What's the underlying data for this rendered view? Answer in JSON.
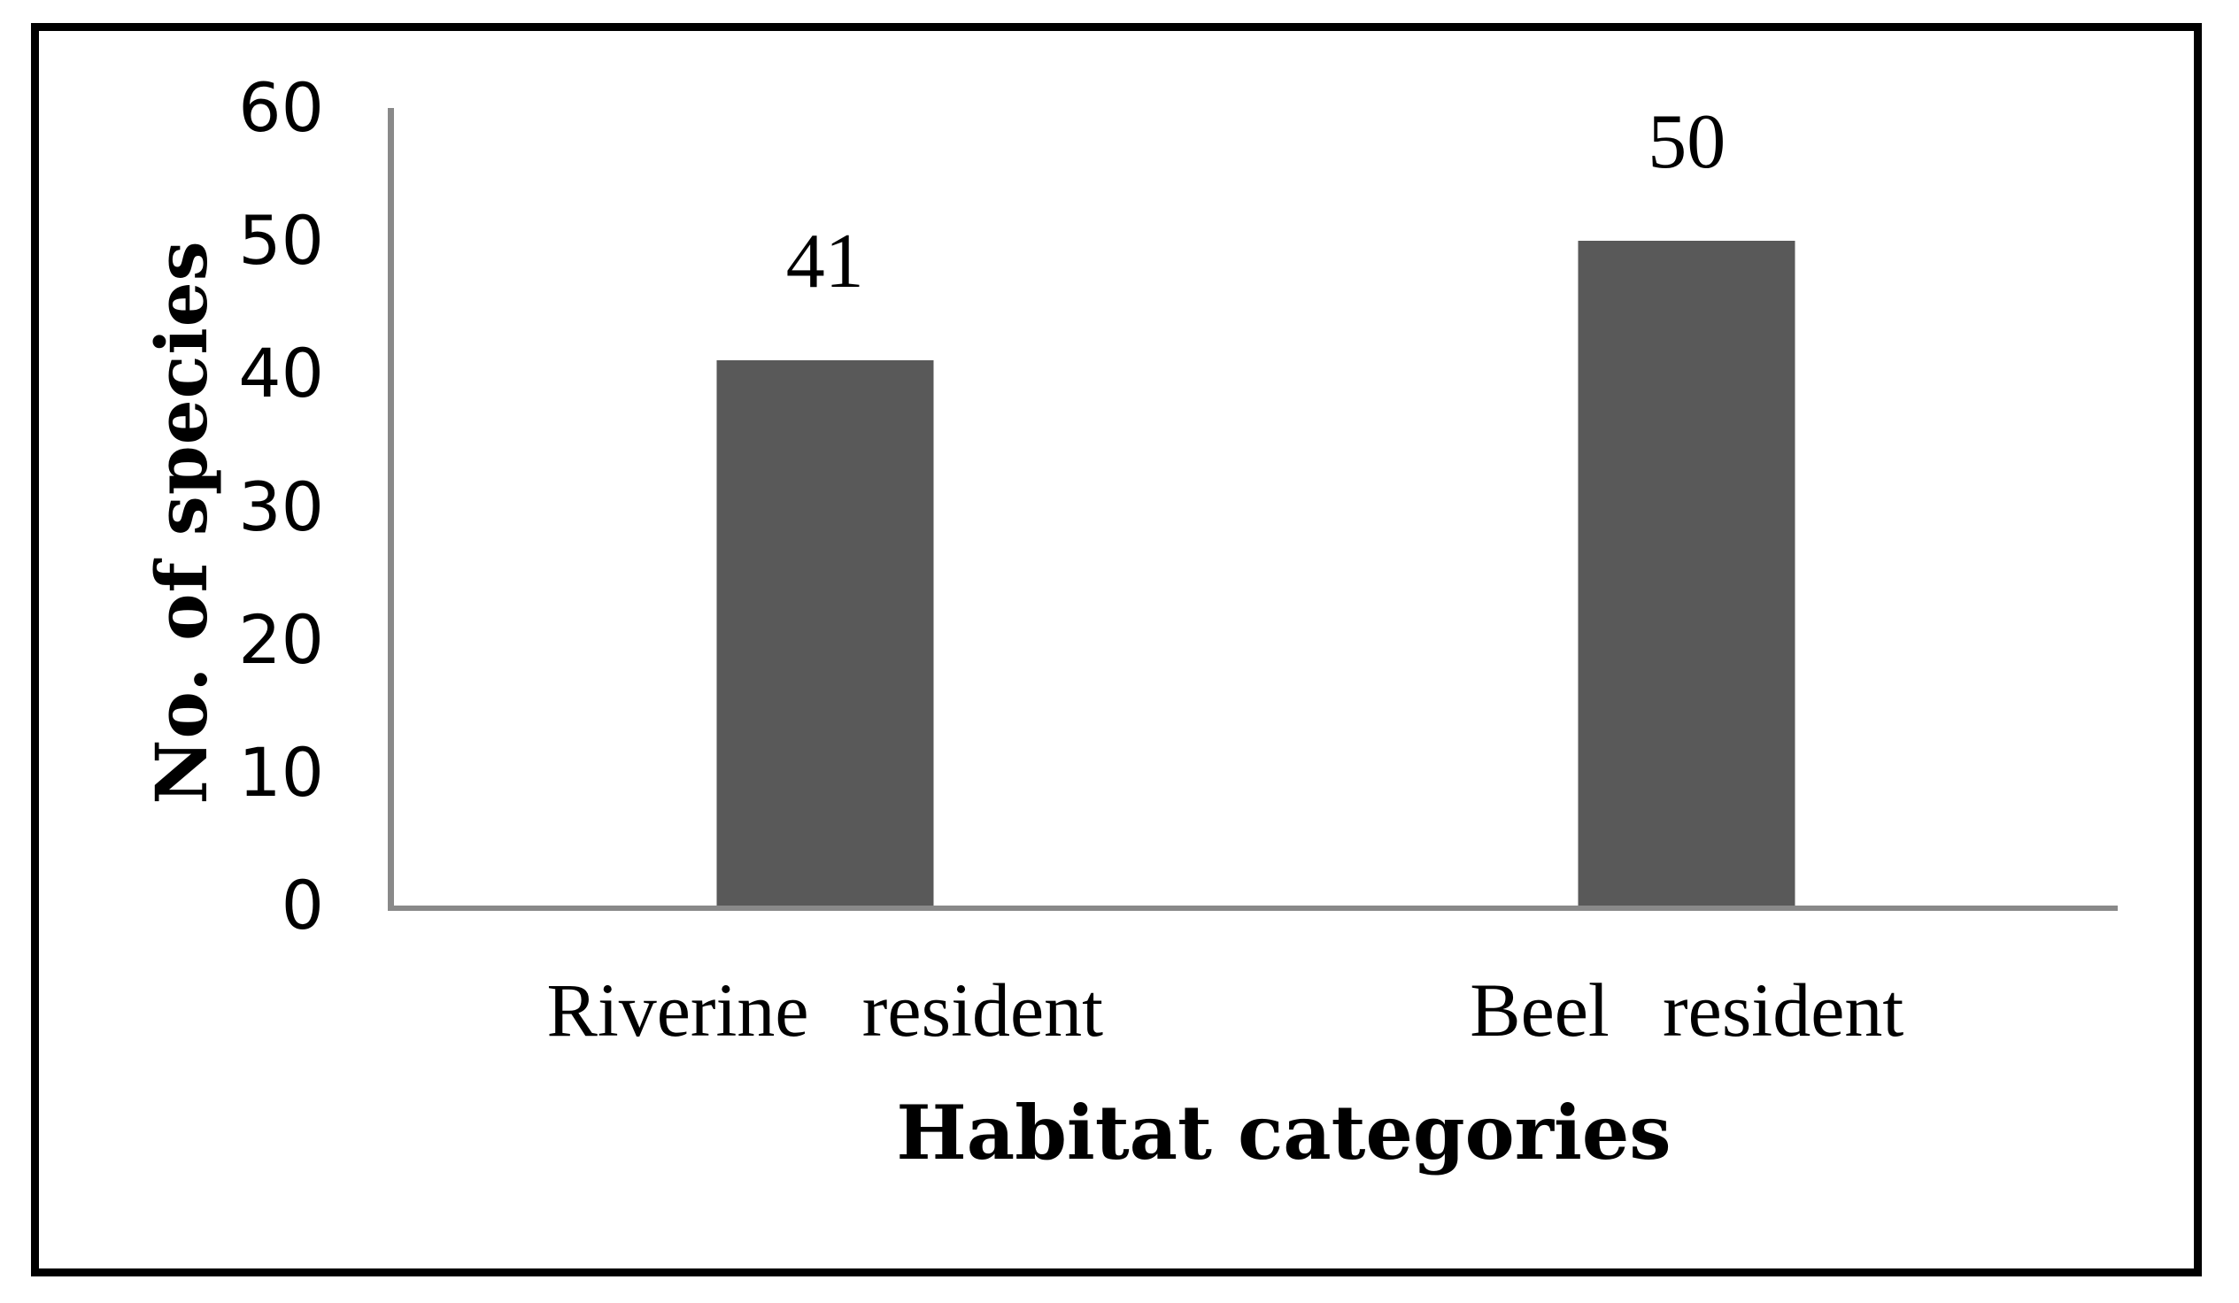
{
  "figure": {
    "background_color": "#ffffff",
    "border_color": "#000000",
    "text_color": "#000000"
  },
  "chart_data": {
    "type": "bar",
    "categories": [
      "Riverine resident",
      "Beel resident"
    ],
    "values": [
      41,
      50
    ],
    "data_labels": [
      "41",
      "50"
    ],
    "title": "",
    "xlabel": "Habitat categories",
    "ylabel": "No. of species",
    "ylim": [
      0,
      60
    ],
    "ytick_step": 10,
    "ytick_labels": [
      "0",
      "10",
      "20",
      "30",
      "40",
      "50",
      "60"
    ],
    "bar_color": "#595959",
    "axis_color": "#898989",
    "grid": "off",
    "legend_position": "none"
  }
}
